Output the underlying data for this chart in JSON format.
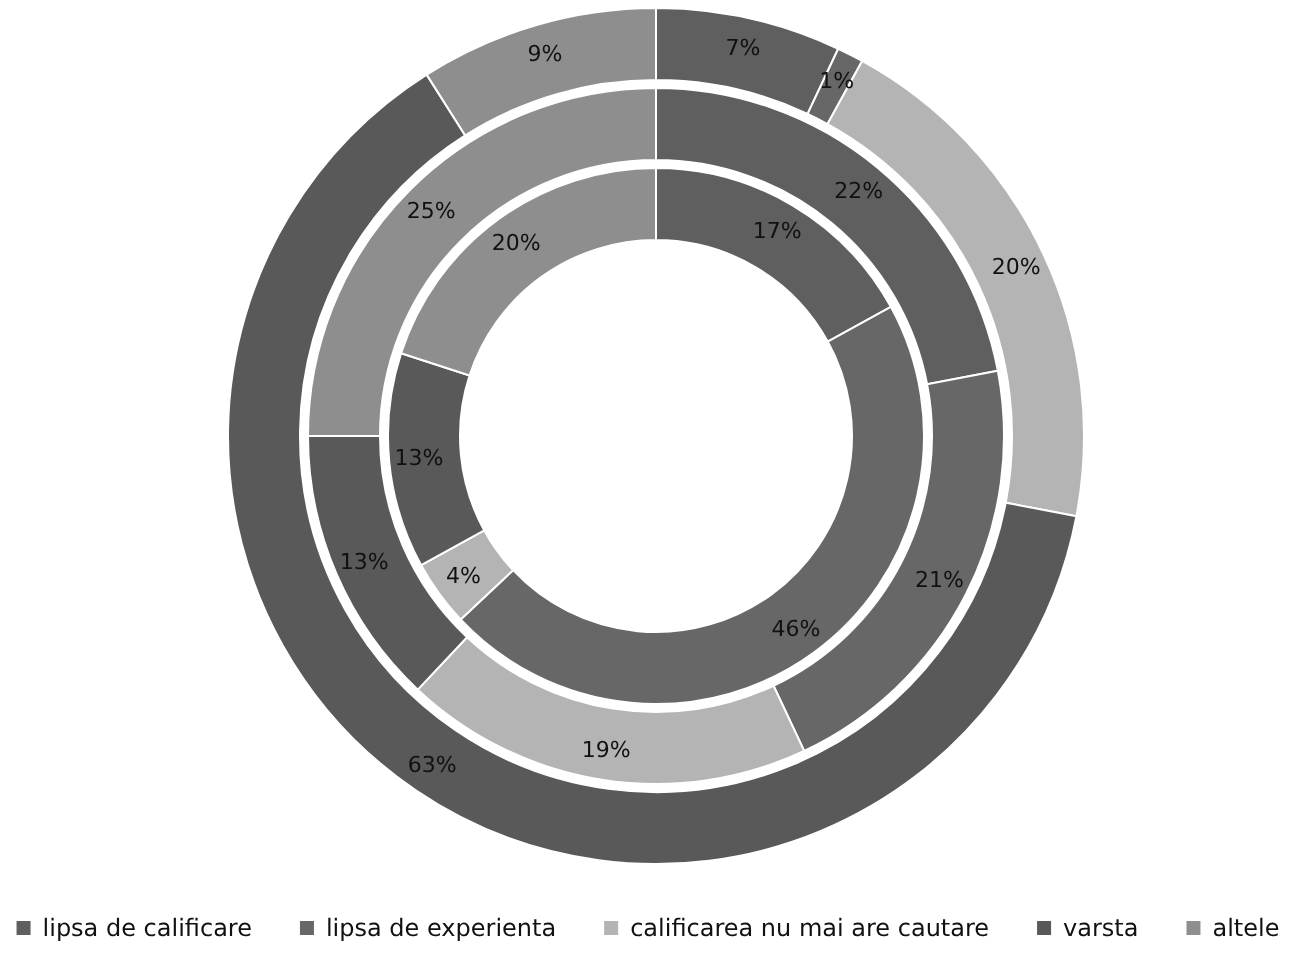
{
  "chart_data": {
    "type": "donut",
    "categories": [
      "lipsa de calificare",
      "lipsa de experienta",
      "calificarea nu mai are cautare",
      "varsta",
      "altele"
    ],
    "colors": [
      "#5f5f5f",
      "#676767",
      "#b4b4b4",
      "#595959",
      "#8e8e8e"
    ],
    "series": [
      {
        "values": [
          17,
          46,
          4,
          13,
          20
        ],
        "value_labels": [
          "17%",
          "46%",
          "4%",
          "13%",
          "20%"
        ]
      },
      {
        "values": [
          22,
          21,
          19,
          13,
          25
        ],
        "value_labels": [
          "22%",
          "21%",
          "19%",
          "13%",
          "25%"
        ]
      },
      {
        "values": [
          7,
          1,
          20,
          63,
          9
        ],
        "value_labels": [
          "7%",
          "1%",
          "20%",
          "63%",
          "9%"
        ]
      }
    ],
    "legend": "bottom"
  }
}
